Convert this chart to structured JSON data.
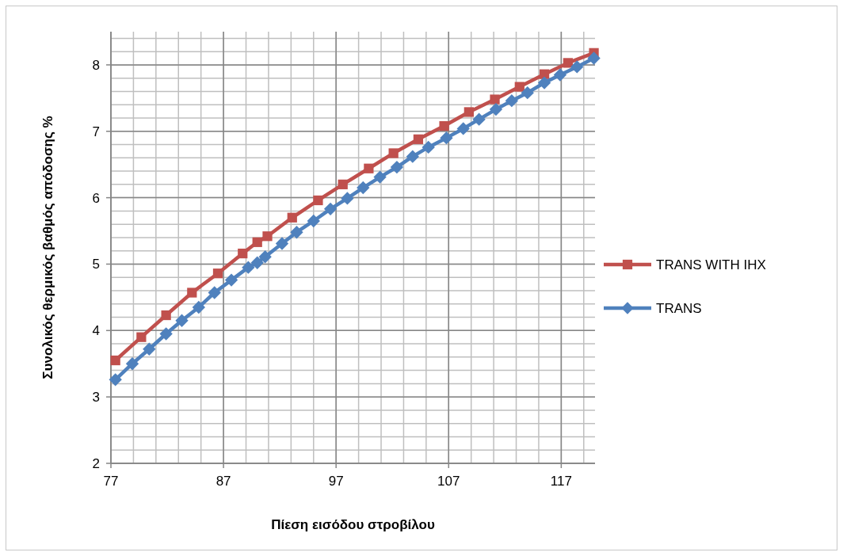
{
  "chart_data": {
    "type": "line",
    "xlabel": "Πίεση εισόδου στροβίλου",
    "ylabel": "Συνολικός θερμικός βαθμός απόδοσης %",
    "xlim": [
      77,
      120
    ],
    "xticks": [
      77,
      87,
      97,
      107,
      117
    ],
    "ylim": [
      2,
      8.5
    ],
    "yticks": [
      2,
      3,
      4,
      5,
      6,
      7,
      8
    ],
    "grid": true,
    "legend": "right",
    "line_style": "solid",
    "series": [
      {
        "name": "TRANS WITH IHX",
        "color": "#c0504d",
        "marker": "square",
        "x": [
          77.4,
          79.7,
          81.9,
          84.2,
          86.5,
          88.7,
          90.0,
          90.9,
          93.1,
          95.4,
          97.6,
          99.9,
          102.1,
          104.3,
          106.6,
          108.8,
          111.1,
          113.3,
          115.5,
          117.6,
          119.9
        ],
        "values": [
          3.55,
          3.9,
          4.23,
          4.57,
          4.86,
          5.16,
          5.33,
          5.42,
          5.7,
          5.96,
          6.2,
          6.44,
          6.67,
          6.88,
          7.08,
          7.29,
          7.48,
          7.67,
          7.86,
          8.03,
          8.18
        ]
      },
      {
        "name": "TRANS",
        "color": "#4f81bd",
        "marker": "diamond",
        "x": [
          77.4,
          78.9,
          80.4,
          81.9,
          83.3,
          84.8,
          86.2,
          87.7,
          89.2,
          90.0,
          90.7,
          92.2,
          93.5,
          95.0,
          96.5,
          98.0,
          99.4,
          100.9,
          102.4,
          103.8,
          105.2,
          106.8,
          108.3,
          109.7,
          111.2,
          112.6,
          114.0,
          115.5,
          116.9,
          118.4,
          119.9
        ],
        "values": [
          3.26,
          3.5,
          3.72,
          3.95,
          4.15,
          4.35,
          4.57,
          4.76,
          4.95,
          5.02,
          5.11,
          5.31,
          5.48,
          5.65,
          5.83,
          5.99,
          6.15,
          6.31,
          6.46,
          6.62,
          6.76,
          6.9,
          7.04,
          7.18,
          7.33,
          7.46,
          7.58,
          7.73,
          7.85,
          7.97,
          8.1
        ]
      }
    ]
  }
}
